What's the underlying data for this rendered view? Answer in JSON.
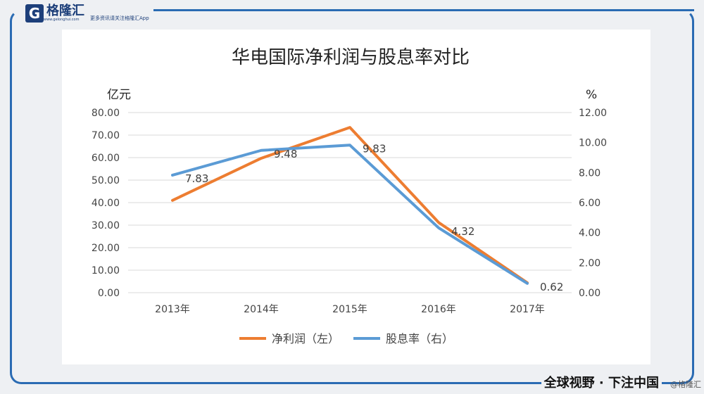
{
  "brand": {
    "name": "格隆汇",
    "url": "www.gelonghui.com",
    "tagline": "更多资讯请关注格隆汇App",
    "slogan": "全球视野 · 下注中国",
    "watermark": "@格隆汇"
  },
  "chart_data": {
    "type": "line",
    "title": "华电国际净利润与股息率对比",
    "ylabel": "亿元",
    "ylabel_right": "%",
    "categories": [
      "2013年",
      "2014年",
      "2015年",
      "2016年",
      "2017年"
    ],
    "ylim": [
      0,
      80
    ],
    "ylim_right": [
      0,
      12
    ],
    "yticks": [
      "0.00",
      "10.00",
      "20.00",
      "30.00",
      "40.00",
      "50.00",
      "60.00",
      "70.00",
      "80.00"
    ],
    "yticks_right": [
      "0.00",
      "2.00",
      "4.00",
      "6.00",
      "8.00",
      "10.00",
      "12.00"
    ],
    "grid": true,
    "legend": "bottom",
    "series": [
      {
        "name": "净利润（左）",
        "axis": "left",
        "color": "#ed7d31",
        "values": [
          41,
          59.7,
          73.4,
          31.2,
          4.4
        ]
      },
      {
        "name": "股息率（右）",
        "axis": "right",
        "color": "#5b9bd5",
        "values": [
          7.83,
          9.48,
          9.83,
          4.32,
          0.62
        ],
        "labels": [
          "7.83",
          "9.48",
          "9.83",
          "4.32",
          "0.62"
        ]
      }
    ]
  }
}
